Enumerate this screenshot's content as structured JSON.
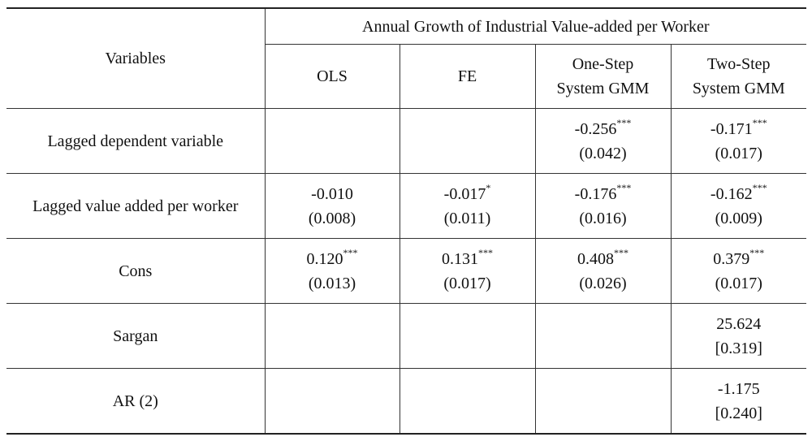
{
  "header": {
    "variables_label": "Variables",
    "group_label": "Annual Growth of Industrial Value-added per Worker",
    "columns": [
      {
        "line1": "OLS",
        "line2": ""
      },
      {
        "line1": "FE",
        "line2": ""
      },
      {
        "line1": "One-Step",
        "line2": "System GMM"
      },
      {
        "line1": "Two-Step",
        "line2": "System GMM"
      }
    ]
  },
  "rows": [
    {
      "label": "Lagged dependent variable",
      "cells": [
        {
          "coef": "",
          "sig": "",
          "se": ""
        },
        {
          "coef": "",
          "sig": "",
          "se": ""
        },
        {
          "coef": "-0.256",
          "sig": "***",
          "se": "(0.042)"
        },
        {
          "coef": "-0.171",
          "sig": "***",
          "se": "(0.017)"
        }
      ]
    },
    {
      "label": "Lagged value added per worker",
      "cells": [
        {
          "coef": "-0.010",
          "sig": "",
          "se": "(0.008)"
        },
        {
          "coef": "-0.017",
          "sig": "*",
          "se": "(0.011)"
        },
        {
          "coef": "-0.176",
          "sig": "***",
          "se": "(0.016)"
        },
        {
          "coef": "-0.162",
          "sig": "***",
          "se": "(0.009)"
        }
      ]
    },
    {
      "label": "Cons",
      "cells": [
        {
          "coef": "0.120",
          "sig": "***",
          "se": "(0.013)"
        },
        {
          "coef": "0.131",
          "sig": "***",
          "se": "(0.017)"
        },
        {
          "coef": "0.408",
          "sig": "***",
          "se": "(0.026)"
        },
        {
          "coef": "0.379",
          "sig": "***",
          "se": "(0.017)"
        }
      ]
    },
    {
      "label": "Sargan",
      "cells": [
        {
          "coef": "",
          "sig": "",
          "se": ""
        },
        {
          "coef": "",
          "sig": "",
          "se": ""
        },
        {
          "coef": "",
          "sig": "",
          "se": ""
        },
        {
          "coef": "25.624",
          "sig": "",
          "se": "[0.319]"
        }
      ]
    },
    {
      "label": "AR (2)",
      "cells": [
        {
          "coef": "",
          "sig": "",
          "se": ""
        },
        {
          "coef": "",
          "sig": "",
          "se": ""
        },
        {
          "coef": "",
          "sig": "",
          "se": ""
        },
        {
          "coef": "-1.175",
          "sig": "",
          "se": "[0.240]"
        }
      ]
    }
  ]
}
